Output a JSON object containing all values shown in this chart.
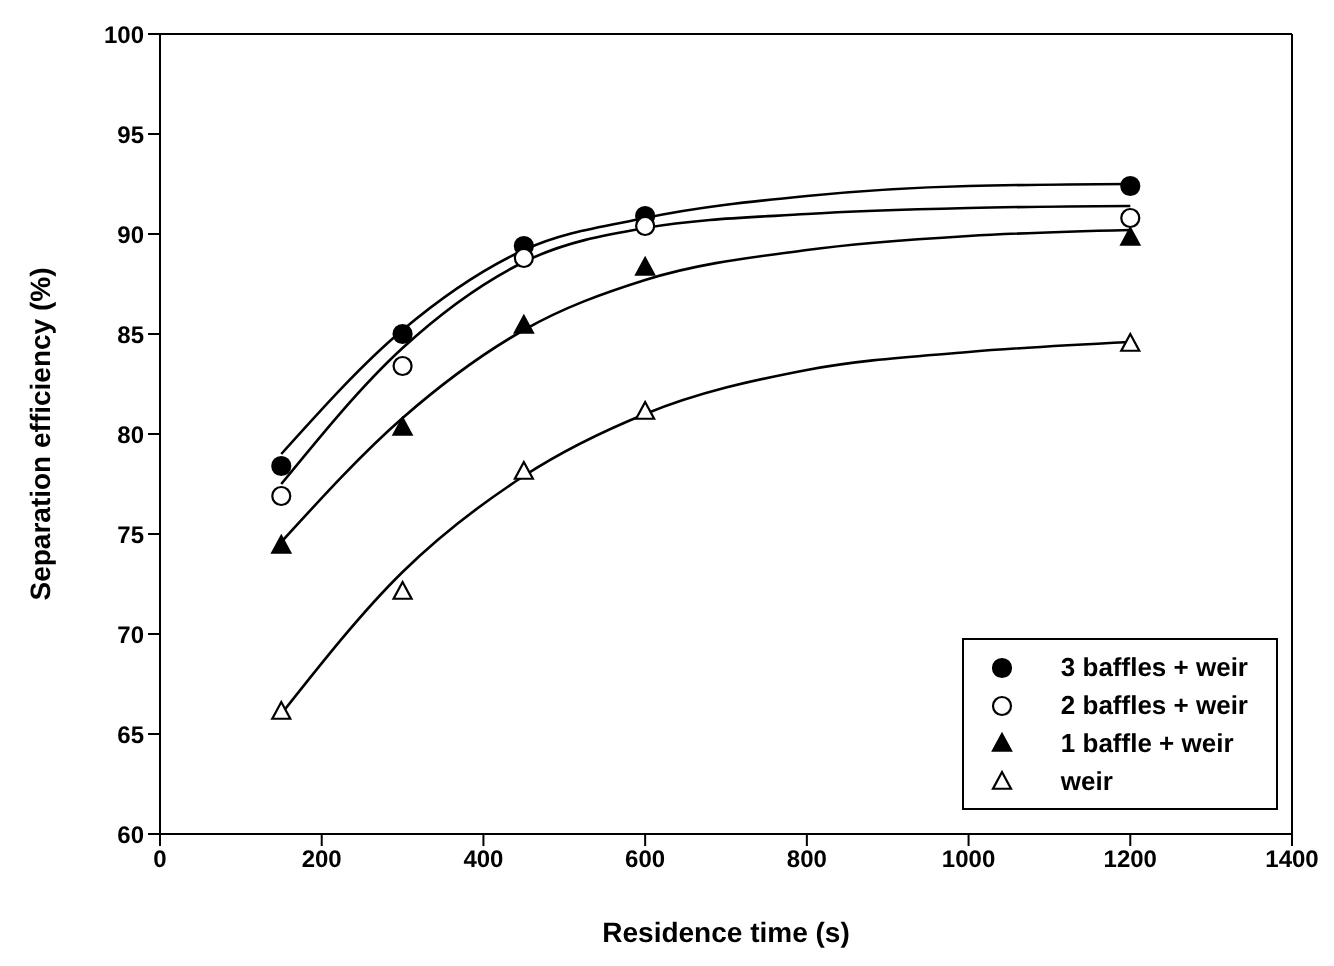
{
  "chart_data": {
    "type": "scatter",
    "xlabel": "Residence time (s)",
    "ylabel": "Separation efficiency (%)",
    "x": [
      150,
      300,
      450,
      600,
      1200
    ],
    "xlim": [
      0,
      1400
    ],
    "xticks": [
      0,
      200,
      400,
      600,
      800,
      1000,
      1200,
      1400
    ],
    "ylim": [
      60,
      100
    ],
    "yticks": [
      60,
      65,
      70,
      75,
      80,
      85,
      90,
      95,
      100
    ],
    "legend": "bottom right",
    "series": [
      {
        "name": "3 baffles + weir",
        "color": "#000000",
        "marker": "circle",
        "values": [
          78.4,
          85.0,
          89.4,
          90.9,
          92.4
        ]
      },
      {
        "name": "2 baffles + weir",
        "color": "#ffffff",
        "marker": "circle",
        "values": [
          76.9,
          83.4,
          88.8,
          90.4,
          90.8
        ]
      },
      {
        "name": "1 baffle + weir",
        "color": "#000000",
        "marker": "triangle",
        "values": [
          74.4,
          80.3,
          85.4,
          88.3,
          89.8
        ]
      },
      {
        "name": "weir",
        "color": "#ffffff",
        "marker": "triangle",
        "values": [
          66.1,
          72.1,
          78.1,
          81.1,
          84.5
        ]
      },
      {
        "type": "line",
        "color": "#000000",
        "marker": "none",
        "x": [
          150,
          300,
          450,
          600,
          800,
          1000,
          1200
        ],
        "values": [
          79.0,
          85.2,
          89.2,
          90.8,
          91.9,
          92.4,
          92.5
        ]
      },
      {
        "type": "line",
        "color": "#000000",
        "marker": "none",
        "x": [
          150,
          300,
          450,
          600,
          800,
          1000,
          1200
        ],
        "values": [
          77.5,
          84.3,
          88.6,
          90.3,
          91.0,
          91.3,
          91.4
        ]
      },
      {
        "type": "line",
        "color": "#000000",
        "marker": "none",
        "x": [
          150,
          300,
          450,
          600,
          800,
          1000,
          1200
        ],
        "values": [
          74.6,
          80.8,
          85.2,
          87.7,
          89.2,
          89.9,
          90.2
        ]
      },
      {
        "type": "line",
        "color": "#000000",
        "marker": "none",
        "x": [
          150,
          300,
          450,
          600,
          800,
          1000,
          1200
        ],
        "values": [
          66.0,
          73.1,
          77.9,
          81.0,
          83.2,
          84.1,
          84.6
        ]
      }
    ]
  }
}
